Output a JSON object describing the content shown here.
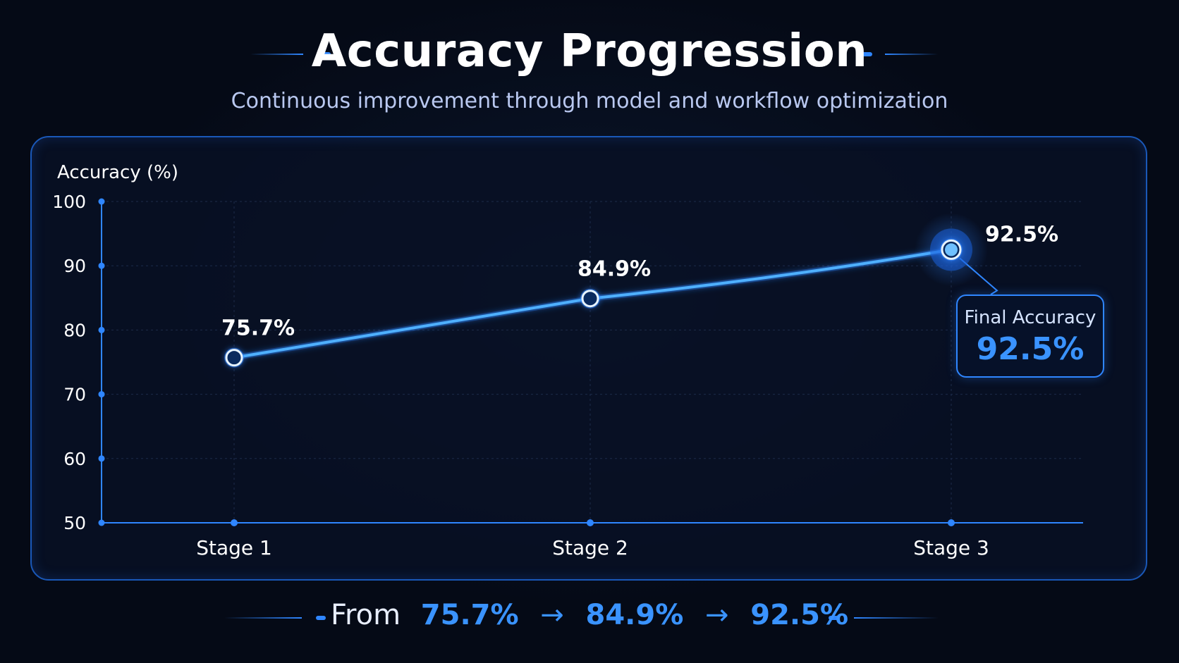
{
  "header": {
    "title": "Accuracy Progression",
    "subtitle": "Continuous improvement through model and workflow optimization"
  },
  "colors": {
    "background": "#050a16",
    "accent": "#2f86ff",
    "line": "#3aa0ff",
    "text": "#ffffff",
    "subtitle": "#b9c8f0"
  },
  "chart_data": {
    "type": "line",
    "categories": [
      "Stage 1",
      "Stage 2",
      "Stage 3"
    ],
    "values": [
      75.7,
      84.9,
      92.5
    ],
    "data_labels": [
      "75.7%",
      "84.9%",
      "92.5%"
    ],
    "ylabel": "Accuracy (%)",
    "xlabel": "",
    "ylim": [
      50,
      100
    ],
    "yticks": [
      50,
      60,
      70,
      80,
      90,
      100
    ],
    "grid": true,
    "legend": "none"
  },
  "callout": {
    "label": "Final Accuracy",
    "value": "92.5%"
  },
  "footer": {
    "from": "From",
    "values": [
      "75.7%",
      "84.9%",
      "92.5%"
    ],
    "arrow": "→"
  }
}
